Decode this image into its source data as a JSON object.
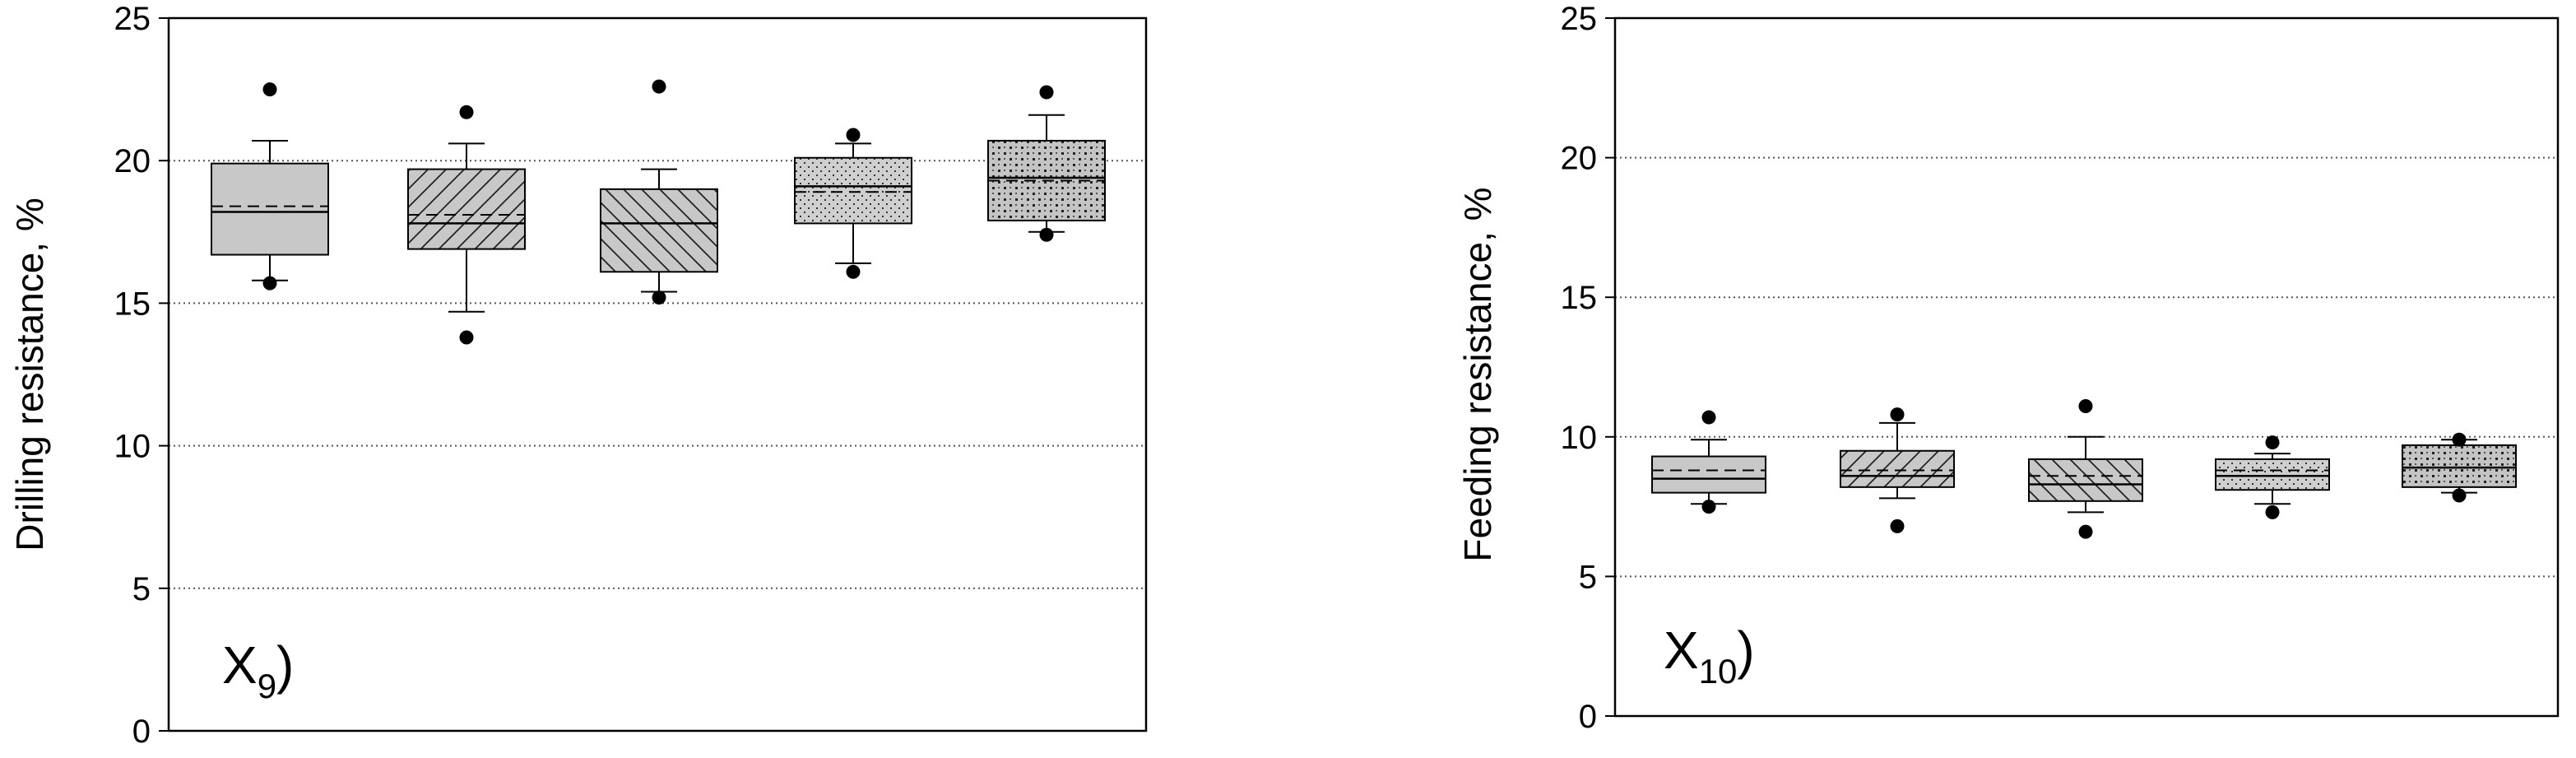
{
  "chart_data": [
    {
      "type": "box",
      "panel_label": "X",
      "panel_subscript": "9",
      "panel_suffix": ")",
      "title": "",
      "xlabel": "",
      "ylabel": "Drilling resistance, %",
      "ylim": [
        0,
        25
      ],
      "yticks": [
        "0",
        "5",
        "10",
        "15",
        "20",
        "25"
      ],
      "grid": "horizontal-dotted",
      "boxes": [
        {
          "pattern": "plain",
          "q1": 16.7,
          "median": 18.2,
          "mean": 18.4,
          "q3": 19.9,
          "whisker_low": 15.8,
          "whisker_high": 20.7,
          "outliers": [
            22.5,
            15.7
          ]
        },
        {
          "pattern": "hatch-forward",
          "q1": 16.9,
          "median": 17.8,
          "mean": 18.1,
          "q3": 19.7,
          "whisker_low": 14.7,
          "whisker_high": 20.6,
          "outliers": [
            21.7,
            13.8
          ]
        },
        {
          "pattern": "hatch-backward",
          "q1": 16.1,
          "median": 17.8,
          "mean": 17.8,
          "q3": 19.0,
          "whisker_low": 15.4,
          "whisker_high": 19.7,
          "outliers": [
            22.6,
            15.2
          ]
        },
        {
          "pattern": "dots-fine",
          "q1": 17.8,
          "median": 19.1,
          "mean": 18.9,
          "q3": 20.1,
          "whisker_low": 16.4,
          "whisker_high": 20.6,
          "outliers": [
            20.9,
            16.1
          ]
        },
        {
          "pattern": "dots-coarse",
          "q1": 17.9,
          "median": 19.4,
          "mean": 19.3,
          "q3": 20.7,
          "whisker_low": 17.5,
          "whisker_high": 21.6,
          "outliers": [
            22.4,
            17.4
          ]
        }
      ]
    },
    {
      "type": "box",
      "panel_label": "X",
      "panel_subscript": "10",
      "panel_suffix": ")",
      "title": "",
      "xlabel": "",
      "ylabel": "Feeding resistance, %",
      "ylim": [
        0,
        25
      ],
      "yticks": [
        "0",
        "5",
        "10",
        "15",
        "20",
        "25"
      ],
      "grid": "horizontal-dotted",
      "boxes": [
        {
          "pattern": "plain",
          "q1": 8.0,
          "median": 8.5,
          "mean": 8.8,
          "q3": 9.3,
          "whisker_low": 7.6,
          "whisker_high": 9.9,
          "outliers": [
            10.7,
            7.5
          ]
        },
        {
          "pattern": "hatch-forward",
          "q1": 8.2,
          "median": 8.6,
          "mean": 8.8,
          "q3": 9.5,
          "whisker_low": 7.8,
          "whisker_high": 10.5,
          "outliers": [
            10.8,
            6.8
          ]
        },
        {
          "pattern": "hatch-backward",
          "q1": 7.7,
          "median": 8.3,
          "mean": 8.6,
          "q3": 9.2,
          "whisker_low": 7.3,
          "whisker_high": 10.0,
          "outliers": [
            11.1,
            6.6
          ]
        },
        {
          "pattern": "dots-fine",
          "q1": 8.1,
          "median": 8.6,
          "mean": 8.8,
          "q3": 9.2,
          "whisker_low": 7.6,
          "whisker_high": 9.4,
          "outliers": [
            9.8,
            7.3
          ]
        },
        {
          "pattern": "dots-coarse",
          "q1": 8.2,
          "median": 8.9,
          "mean": 8.9,
          "q3": 9.7,
          "whisker_low": 8.0,
          "whisker_high": 9.9,
          "outliers": [
            9.9,
            7.9
          ]
        }
      ]
    }
  ]
}
